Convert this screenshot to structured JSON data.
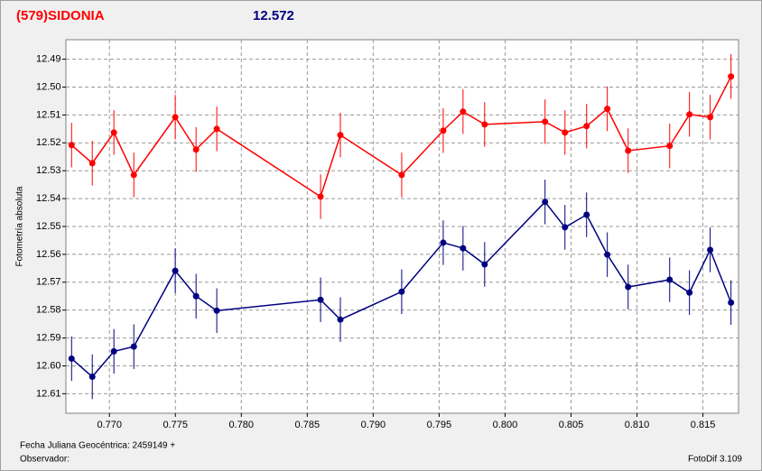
{
  "chart_data": {
    "type": "line",
    "title": "(579)SIDONIA",
    "subtitle": "12.572",
    "y_label": "Fotometría absoluta",
    "x_label": "Fecha Juliana Geocéntrica: 2459149 +",
    "observer_label": "Observador:",
    "software_label": "FotoDif 3.109",
    "x": [
      0.76713,
      0.7687,
      0.77034,
      0.77185,
      0.77499,
      0.77657,
      0.77814,
      0.78601,
      0.78751,
      0.79216,
      0.79531,
      0.79681,
      0.79845,
      0.80303,
      0.80454,
      0.80618,
      0.80775,
      0.80933,
      0.81248,
      0.81398,
      0.81555,
      0.81713
    ],
    "series": [
      {
        "color": "#ff0000",
        "values": [
          12.5208,
          12.5273,
          12.5163,
          12.5315,
          12.5108,
          12.5224,
          12.515,
          12.5393,
          12.5172,
          12.5315,
          12.5156,
          12.5088,
          12.5134,
          12.5124,
          12.5163,
          12.514,
          12.5078,
          12.5228,
          12.5211,
          12.5098,
          12.5108,
          12.4962
        ],
        "errors": [
          0.008,
          0.008,
          0.008,
          0.008,
          0.008,
          0.008,
          0.008,
          0.008,
          0.008,
          0.008,
          0.008,
          0.008,
          0.008,
          0.008,
          0.008,
          0.008,
          0.008,
          0.008,
          0.008,
          0.008,
          0.008,
          0.008
        ]
      },
      {
        "color": "#000080",
        "values": [
          12.5974,
          12.6039,
          12.5948,
          12.5931,
          12.5659,
          12.575,
          12.5802,
          12.5763,
          12.5834,
          12.5734,
          12.5558,
          12.5578,
          12.5636,
          12.5412,
          12.5503,
          12.5458,
          12.5601,
          12.5717,
          12.5691,
          12.5737,
          12.5584,
          12.5773
        ],
        "errors": [
          0.008,
          0.008,
          0.008,
          0.008,
          0.008,
          0.008,
          0.008,
          0.008,
          0.008,
          0.008,
          0.008,
          0.008,
          0.008,
          0.008,
          0.008,
          0.008,
          0.008,
          0.008,
          0.008,
          0.008,
          0.008,
          0.008
        ]
      }
    ],
    "xlim": [
      0.7667,
      0.8177
    ],
    "xticks": [
      {
        "value": 0.77,
        "label": "0.770"
      },
      0.775,
      {
        "value": 0.78,
        "label": "0.780"
      },
      0.785,
      {
        "value": 0.79,
        "label": "0.790"
      },
      0.795,
      {
        "value": 0.8,
        "label": "0.800"
      },
      0.805,
      {
        "value": 0.81,
        "label": "0.810"
      },
      0.815
    ],
    "ylim": [
      12.617,
      12.483
    ],
    "yticks": [
      12.49,
      {
        "value": 12.5,
        "label": "12.50"
      },
      12.51,
      12.52,
      12.53,
      12.54,
      12.55,
      12.56,
      12.57,
      12.58,
      12.59,
      {
        "value": 12.6,
        "label": "12.60"
      },
      12.61
    ],
    "grid": true
  }
}
